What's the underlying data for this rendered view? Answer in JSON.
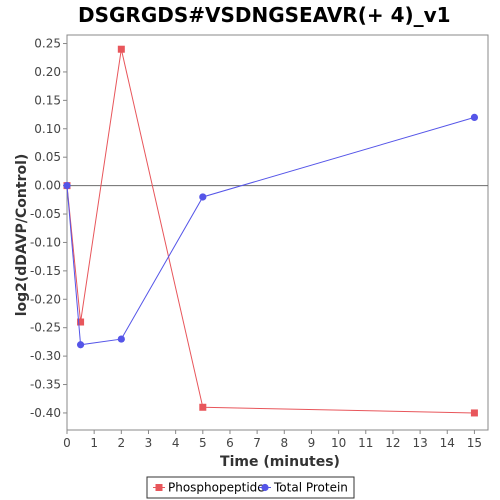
{
  "chart_data": {
    "type": "line",
    "title": "DSGRGDS#VSDNGSEAVR(+ 4)_v1",
    "xlabel": "Time (minutes)",
    "ylabel": "log2(dDAVP/Control)",
    "xlim": [
      0,
      15.5
    ],
    "ylim": [
      -0.43,
      0.265
    ],
    "x_ticks": [
      "0",
      "1",
      "2",
      "3",
      "4",
      "5",
      "6",
      "7",
      "8",
      "9",
      "10",
      "11",
      "12",
      "13",
      "14",
      "15"
    ],
    "y_ticks": [
      "0.25",
      "0.20",
      "0.15",
      "0.10",
      "0.05",
      "0.00",
      "-0.05",
      "-0.10",
      "-0.15",
      "-0.20",
      "-0.25",
      "-0.30",
      "-0.35",
      "-0.40"
    ],
    "grid": false,
    "zero_line": true,
    "legend_position": "bottom",
    "series": [
      {
        "name": "Phosphopeptide",
        "color": "#e8565b",
        "marker": "square",
        "x": [
          0,
          0.5,
          2,
          5,
          15
        ],
        "y": [
          0.0,
          -0.24,
          0.24,
          -0.39,
          -0.4
        ]
      },
      {
        "name": "Total Protein",
        "color": "#5555e8",
        "marker": "circle",
        "x": [
          0,
          0.5,
          2,
          5,
          15
        ],
        "y": [
          0.0,
          -0.28,
          -0.27,
          -0.02,
          0.12
        ]
      }
    ]
  }
}
